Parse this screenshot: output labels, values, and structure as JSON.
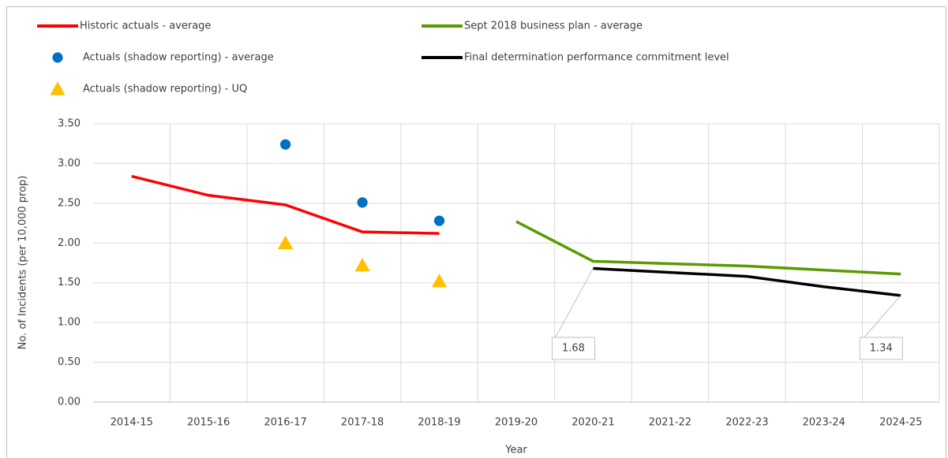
{
  "chart_data": {
    "type": "line",
    "x_label": "Year",
    "y_label": "No. of Incidents (per 10,000 prop)",
    "categories": [
      "2014-15",
      "2015-16",
      "2016-17",
      "2017-18",
      "2018-19",
      "2019-20",
      "2020-21",
      "2021-22",
      "2022-23",
      "2023-24",
      "2024-25"
    ],
    "series": [
      {
        "name": "Historic actuals - average",
        "color": "#ff0000",
        "marker": "line",
        "values": [
          2.84,
          2.6,
          2.48,
          2.14,
          2.12,
          null,
          null,
          null,
          null,
          null,
          null
        ]
      },
      {
        "name": "Sept 2018 business plan - average",
        "color": "#5b9a00",
        "marker": "line",
        "values": [
          null,
          null,
          null,
          null,
          null,
          2.27,
          1.77,
          1.74,
          1.71,
          1.66,
          1.61
        ]
      },
      {
        "name": "Actuals (shadow reporting) - average",
        "color": "#0070c0",
        "marker": "circle",
        "values": [
          null,
          null,
          3.24,
          2.51,
          2.28,
          null,
          null,
          null,
          null,
          null,
          null
        ]
      },
      {
        "name": "Final determination performance commitment level",
        "color": "#000000",
        "marker": "line",
        "values": [
          null,
          null,
          null,
          null,
          null,
          null,
          1.68,
          1.63,
          1.58,
          1.45,
          1.34
        ],
        "value_labels": [
          null,
          null,
          null,
          null,
          null,
          null,
          "1.68",
          null,
          null,
          null,
          "1.34"
        ]
      },
      {
        "name": "Actuals (shadow reporting) - UQ",
        "color": "#ffc000",
        "marker": "triangle",
        "values": [
          null,
          null,
          2.0,
          1.72,
          1.52,
          null,
          null,
          null,
          null,
          null,
          null
        ]
      }
    ],
    "ylim": [
      0,
      3.5
    ],
    "yticks": [
      {
        "value": 0,
        "label": "0.00"
      },
      {
        "value": 0.5,
        "label": "0.50"
      },
      {
        "value": 1,
        "label": "1.00"
      },
      {
        "value": 1.5,
        "label": "1.50"
      },
      {
        "value": 2,
        "label": "2.00"
      },
      {
        "value": 2.5,
        "label": "2.50"
      },
      {
        "value": 3,
        "label": "3.00"
      },
      {
        "value": 3.5,
        "label": "3.50"
      }
    ],
    "grid": true,
    "legend": "top"
  }
}
